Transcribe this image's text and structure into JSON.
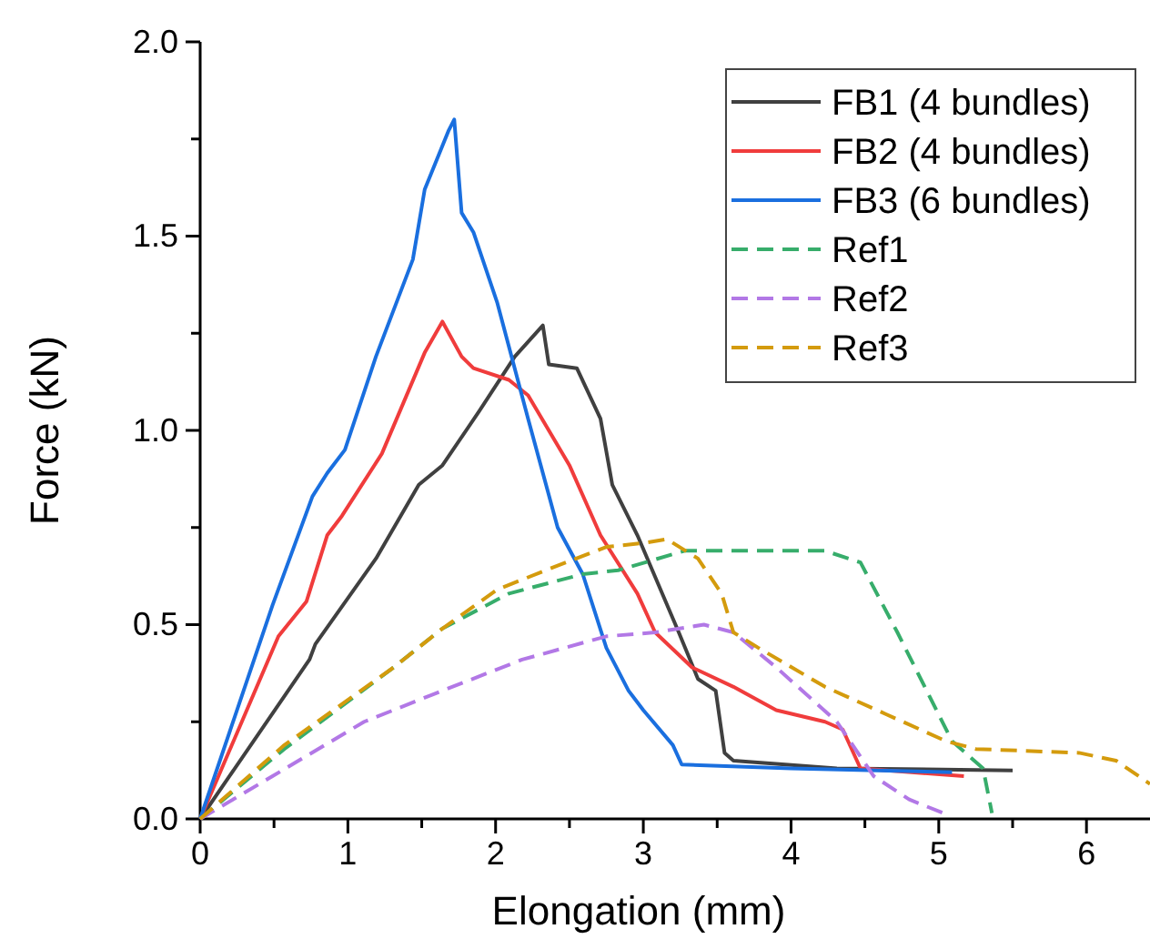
{
  "chart_data": {
    "type": "line",
    "xlabel": "Elongation (mm)",
    "ylabel": "Force (kN)",
    "xlim": [
      0,
      6.43
    ],
    "xticks": [
      0,
      {
        "value": 0.5,
        "label": null
      },
      1,
      {
        "value": 1.5,
        "label": null
      },
      2,
      {
        "value": 2.5,
        "label": null
      },
      3,
      {
        "value": 3.5,
        "label": null
      },
      4,
      {
        "value": 4.5,
        "label": null
      },
      5,
      {
        "value": 5.5,
        "label": null
      },
      6
    ],
    "ylim": [
      0,
      2.0
    ],
    "yticks": [
      {
        "value": 0,
        "label": "0.0"
      },
      {
        "value": 0.25,
        "label": null
      },
      {
        "value": 0.5,
        "label": "0.5"
      },
      {
        "value": 0.75,
        "label": null
      },
      {
        "value": 1,
        "label": "1.0"
      },
      {
        "value": 1.25,
        "label": null
      },
      {
        "value": 1.5,
        "label": "1.5"
      },
      {
        "value": 1.75,
        "label": null
      },
      {
        "value": 2,
        "label": "2.0"
      }
    ],
    "legend": "top right",
    "grid": false,
    "series": [
      {
        "name": "FB1 (4 bundles)",
        "color": "#404040",
        "line_style": "solid",
        "x": [
          0,
          0.74,
          0.78,
          1.19,
          1.48,
          1.64,
          1.89,
          2.13,
          2.32,
          2.36,
          2.55,
          2.71,
          2.79,
          2.96,
          3.24,
          3.37,
          3.49,
          3.55,
          3.61,
          4.31,
          5.5
        ],
        "values": [
          0,
          0.41,
          0.45,
          0.67,
          0.86,
          0.91,
          1.05,
          1.19,
          1.27,
          1.17,
          1.16,
          1.03,
          0.86,
          0.73,
          0.48,
          0.36,
          0.33,
          0.17,
          0.15,
          0.13,
          0.125
        ]
      },
      {
        "name": "FB2 (4 bundles)",
        "color": "#f03c3c",
        "line_style": "solid",
        "x": [
          0,
          0.53,
          0.72,
          0.86,
          0.96,
          1.23,
          1.52,
          1.64,
          1.77,
          1.85,
          2.09,
          2.22,
          2.5,
          2.71,
          2.96,
          3.08,
          3.33,
          3.61,
          3.9,
          4.23,
          4.35,
          4.47,
          5.17
        ],
        "values": [
          0,
          0.47,
          0.56,
          0.73,
          0.78,
          0.94,
          1.2,
          1.28,
          1.19,
          1.16,
          1.13,
          1.09,
          0.91,
          0.73,
          0.58,
          0.48,
          0.39,
          0.34,
          0.28,
          0.25,
          0.23,
          0.13,
          0.11
        ]
      },
      {
        "name": "FB3 (6 bundles)",
        "color": "#1a6fdf",
        "line_style": "solid",
        "x": [
          0,
          0.49,
          0.76,
          0.86,
          0.98,
          1.19,
          1.44,
          1.52,
          1.68,
          1.72,
          1.77,
          1.85,
          2.01,
          2.22,
          2.42,
          2.59,
          2.75,
          2.9,
          3.0,
          3.2,
          3.26,
          4.0,
          5.09
        ],
        "values": [
          0,
          0.55,
          0.83,
          0.89,
          0.95,
          1.19,
          1.44,
          1.62,
          1.77,
          1.8,
          1.56,
          1.51,
          1.33,
          1.03,
          0.75,
          0.63,
          0.44,
          0.33,
          0.28,
          0.19,
          0.14,
          0.13,
          0.12
        ]
      },
      {
        "name": "Ref1",
        "color": "#37ad6b",
        "line_style": "dashed",
        "x": [
          0,
          0.57,
          1.31,
          1.64,
          2.09,
          2.59,
          2.83,
          3.28,
          4.23,
          4.47,
          4.72,
          5.09,
          5.3,
          5.36
        ],
        "values": [
          0,
          0.18,
          0.39,
          0.49,
          0.58,
          0.63,
          0.64,
          0.69,
          0.69,
          0.66,
          0.48,
          0.2,
          0.13,
          0.015
        ]
      },
      {
        "name": "Ref2",
        "color": "#b278e6",
        "line_style": "dashed",
        "x": [
          0,
          0.49,
          1.11,
          1.64,
          2.18,
          2.75,
          3.08,
          3.41,
          3.61,
          3.9,
          4.31,
          4.56,
          4.8,
          5.03
        ],
        "values": [
          0,
          0.11,
          0.25,
          0.33,
          0.41,
          0.47,
          0.48,
          0.5,
          0.48,
          0.39,
          0.25,
          0.11,
          0.05,
          0.015
        ]
      },
      {
        "name": "Ref3",
        "color": "#d49b0d",
        "line_style": "dashed",
        "x": [
          0,
          0.57,
          1.31,
          1.64,
          2.01,
          2.34,
          2.75,
          3.0,
          3.16,
          3.37,
          3.53,
          3.61,
          3.78,
          4.23,
          4.64,
          5.05,
          5.25,
          5.95,
          6.2,
          6.43
        ],
        "values": [
          0,
          0.19,
          0.39,
          0.49,
          0.59,
          0.64,
          0.7,
          0.71,
          0.72,
          0.67,
          0.58,
          0.48,
          0.44,
          0.34,
          0.27,
          0.2,
          0.18,
          0.17,
          0.15,
          0.09
        ]
      }
    ]
  }
}
